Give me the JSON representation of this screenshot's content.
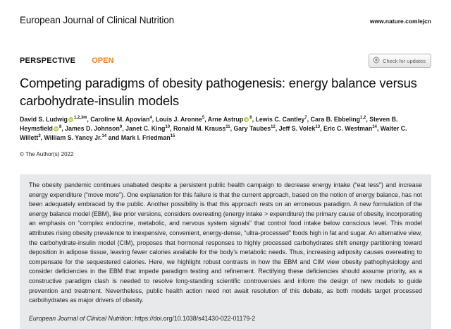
{
  "header": {
    "journal": "European Journal of Clinical Nutrition",
    "site_url": "www.nature.com/ejcn"
  },
  "article": {
    "type_label": "PERSPECTIVE",
    "open_label": "OPEN",
    "check_updates_label": "Check for updates",
    "title": "Competing paradigms of obesity pathogenesis: energy balance versus carbohydrate-insulin models",
    "copyright": "© The Author(s) 2022"
  },
  "authors": {
    "separator": ", ",
    "final_separator": " and ",
    "list": [
      {
        "name": "David S. Ludwig",
        "sup": "1,2,3",
        "orcid": true,
        "corresponding": true
      },
      {
        "name": "Caroline M. Apovian",
        "sup": "4"
      },
      {
        "name": "Louis J. Aronne",
        "sup": "5"
      },
      {
        "name": "Arne Astrup",
        "sup": "6",
        "orcid": true
      },
      {
        "name": "Lewis C. Cantley",
        "sup": "7"
      },
      {
        "name": "Cara B. Ebbeling",
        "sup": "1,2"
      },
      {
        "name": "Steven B. Heymsfield",
        "sup": "8",
        "orcid": true
      },
      {
        "name": "James D. Johnson",
        "sup": "9"
      },
      {
        "name": "Janet C. King",
        "sup": "10"
      },
      {
        "name": "Ronald M. Krauss",
        "sup": "11"
      },
      {
        "name": "Gary Taubes",
        "sup": "12"
      },
      {
        "name": "Jeff S. Volek",
        "sup": "13"
      },
      {
        "name": "Eric C. Westman",
        "sup": "14"
      },
      {
        "name": "Walter C. Willett",
        "sup": "3"
      },
      {
        "name": "William S. Yancy Jr.",
        "sup": "14"
      },
      {
        "name": "Mark I. Friedman",
        "sup": "15"
      }
    ]
  },
  "icons": {
    "orcid_label": "iD",
    "envelope_glyph": "✉"
  },
  "abstract": {
    "text": "The obesity pandemic continues unabated despite a persistent public health campaign to decrease energy intake (“eat less”) and increase energy expenditure (“move more”). One explanation for this failure is that the current approach, based on the notion of energy balance, has not been adequately embraced by the public. Another possibility is that this approach rests on an erroneous paradigm. A new formulation of the energy balance model (EBM), like prior versions, considers overeating (energy intake > expenditure) the primary cause of obesity, incorporating an emphasis on “complex endocrine, metabolic, and nervous system signals” that control food intake below conscious level. This model attributes rising obesity prevalence to inexpensive, convenient, energy-dense, “ultra-processed” foods high in fat and sugar. An alternative view, the carbohydrate-insulin model (CIM), proposes that hormonal responses to highly processed carbohydrates shift energy partitioning toward deposition in adipose tissue, leaving fewer calories available for the body’s metabolic needs. Thus, increasing adiposity causes overeating to compensate for the sequestered calories. Here, we highlight robust contrasts in how the EBM and CIM view obesity pathophysiology and consider deficiencies in the EBM that impede paradigm testing and refinement. Rectifying these deficiencies should assume priority, as a constructive paradigm clash is needed to resolve long-standing scientific controversies and inform the design of new models to guide prevention and treatment. Nevertheless, public health action need not await resolution of this debate, as both models target processed carbohydrates as major drivers of obesity."
  },
  "citation": {
    "journal_italic": "European Journal of Clinical Nutrition",
    "doi_text": "; https://doi.org/10.1038/s41430-022-01179-2"
  },
  "colors": {
    "open_orange": "#f57e20",
    "orcid_green": "#a6ce39",
    "abstract_bg": "#e8e9eb"
  }
}
